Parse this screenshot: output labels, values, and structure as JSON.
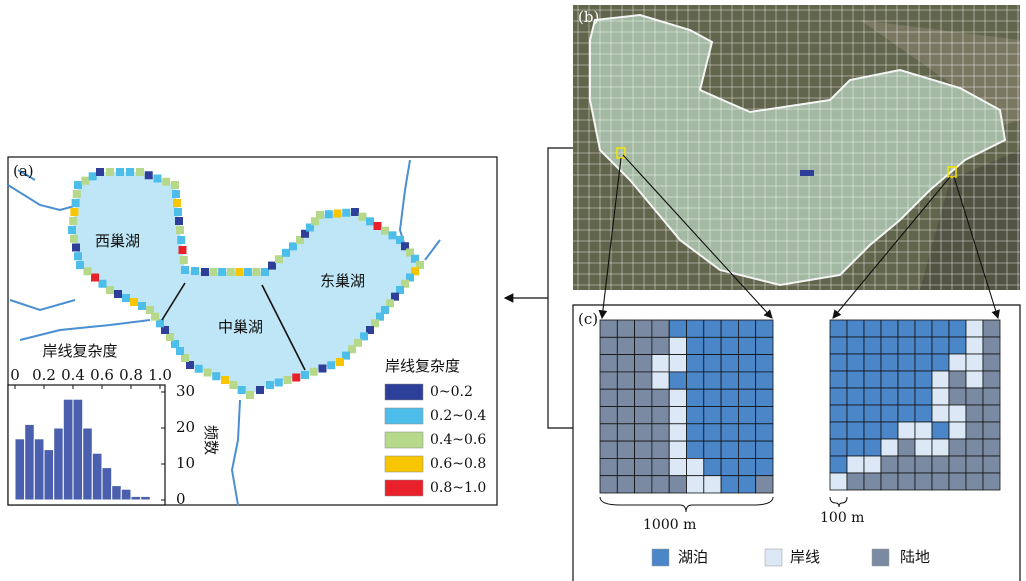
{
  "panel_a": {
    "label": "(a)",
    "lakes": [
      "西巢湖",
      "中巢湖",
      "东巢湖"
    ],
    "legend": {
      "title": "岸线复杂度",
      "items": [
        {
          "label": "0~0.2",
          "color": "#2e3f99"
        },
        {
          "label": "0.2~0.4",
          "color": "#4dbde9"
        },
        {
          "label": "0.4~0.6",
          "color": "#b5d88a"
        },
        {
          "label": "0.6~0.8",
          "color": "#f7c600"
        },
        {
          "label": "0.8~1.0",
          "color": "#e8202a"
        }
      ]
    }
  },
  "chart_data": {
    "type": "histogram",
    "xlabel": "岸线复杂度",
    "ylabel": "频数",
    "bins": [
      0,
      0.067,
      0.133,
      0.2,
      0.267,
      0.333,
      0.4,
      0.467,
      0.533,
      0.6,
      0.667,
      0.733,
      0.8,
      0.867,
      0.933,
      1
    ],
    "values": [
      17,
      21,
      17,
      14,
      20,
      28,
      28,
      20,
      13,
      9,
      4,
      3,
      1,
      1,
      0
    ],
    "color": "#4a5fad",
    "xlim": [
      0,
      1
    ],
    "xticks": [
      0,
      0.2,
      0.4,
      0.6,
      0.8,
      {
        "value": 1,
        "label": "1.0"
      }
    ],
    "ylim": [
      0,
      30
    ],
    "yticks": [
      0,
      10,
      20,
      30
    ]
  },
  "panel_b": {
    "label": "(b)"
  },
  "panel_c": {
    "label": "(c)",
    "scale_labels": [
      "1000 m",
      "100 m"
    ],
    "legend": [
      {
        "label": "湖泊",
        "color": "#4a86c8"
      },
      {
        "label": "岸线",
        "color": "#dce8f5"
      },
      {
        "label": "陆地",
        "color": "#7b8aa3"
      }
    ]
  }
}
